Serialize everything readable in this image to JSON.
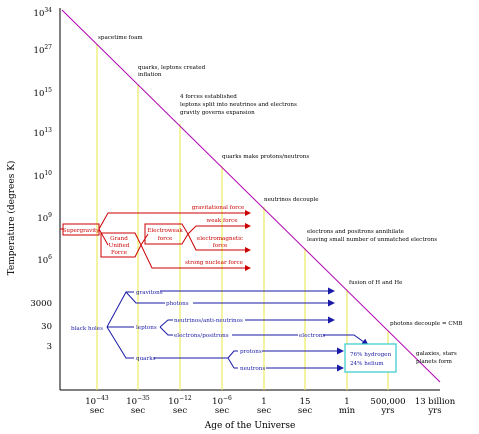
{
  "axes": {
    "y_title": "Temperature (degrees K)",
    "x_title": "Age of the Universe",
    "y_ticks": [
      {
        "base": "10",
        "exp": "34"
      },
      {
        "base": "10",
        "exp": "27"
      },
      {
        "base": "10",
        "exp": "15"
      },
      {
        "base": "10",
        "exp": "13"
      },
      {
        "base": "10",
        "exp": "10"
      },
      {
        "base": "10",
        "exp": "9"
      },
      {
        "base": "10",
        "exp": "6"
      },
      {
        "base": "3000",
        "exp": ""
      },
      {
        "base": "30",
        "exp": ""
      },
      {
        "base": "3",
        "exp": ""
      }
    ],
    "x_ticks": [
      {
        "base": "10",
        "exp": "−43",
        "unit": "sec"
      },
      {
        "base": "10",
        "exp": "−35",
        "unit": "sec"
      },
      {
        "base": "10",
        "exp": "−12",
        "unit": "sec"
      },
      {
        "base": "10",
        "exp": "−6",
        "unit": "sec"
      },
      {
        "base": "1",
        "exp": "",
        "unit": "sec"
      },
      {
        "base": "15",
        "exp": "",
        "unit": "sec"
      },
      {
        "base": "1",
        "exp": "",
        "unit": "min"
      },
      {
        "base": "500,000",
        "exp": "",
        "unit": "yrs"
      },
      {
        "base": "13 billion",
        "exp": "",
        "unit": "yrs"
      }
    ]
  },
  "events": [
    "spacetime foam",
    "quarks, leptons created",
    "inflation",
    "4 forces established",
    "leptons split into neutrinos and electrons",
    "gravity governs expansion",
    "quarks make protons/neutrons",
    "neutrinos decouple",
    "electrons and positrons annihilate",
    "leaving small number of unmatched electrons",
    "fusion of H and He",
    "photons decouple = CMB",
    "galaxies, stars",
    "planets form"
  ],
  "forces": {
    "supergravity": "Supergravity",
    "grand_unified": [
      "Grand",
      "Unified",
      "Force"
    ],
    "electroweak": [
      "Electroweak",
      "force"
    ],
    "gravitational": "gravitational force",
    "weak": "weak force",
    "electromagnetic": [
      "electromagnetic",
      "force"
    ],
    "strong": "strong nuclear force"
  },
  "particles": {
    "black_holes": "black holes",
    "gravitons": "gravitons",
    "photons": "photons",
    "leptons": "leptons",
    "neutrinos": "neutrinos/anti-neutrinos",
    "electrons_positrons": "electrons/positrons",
    "electrons": "electrons",
    "quarks": "quarks",
    "protons": "protons",
    "neutrons": "neutrons",
    "hydrogen": "76% hydrogen",
    "helium": "24% helium"
  },
  "colors": {
    "diagonal": "#b000b0",
    "gridline": "#e8e840",
    "force_arrows": "#cc0000",
    "particle_arrows": "#1a1aa6",
    "abundance_box": "#33cccc"
  }
}
